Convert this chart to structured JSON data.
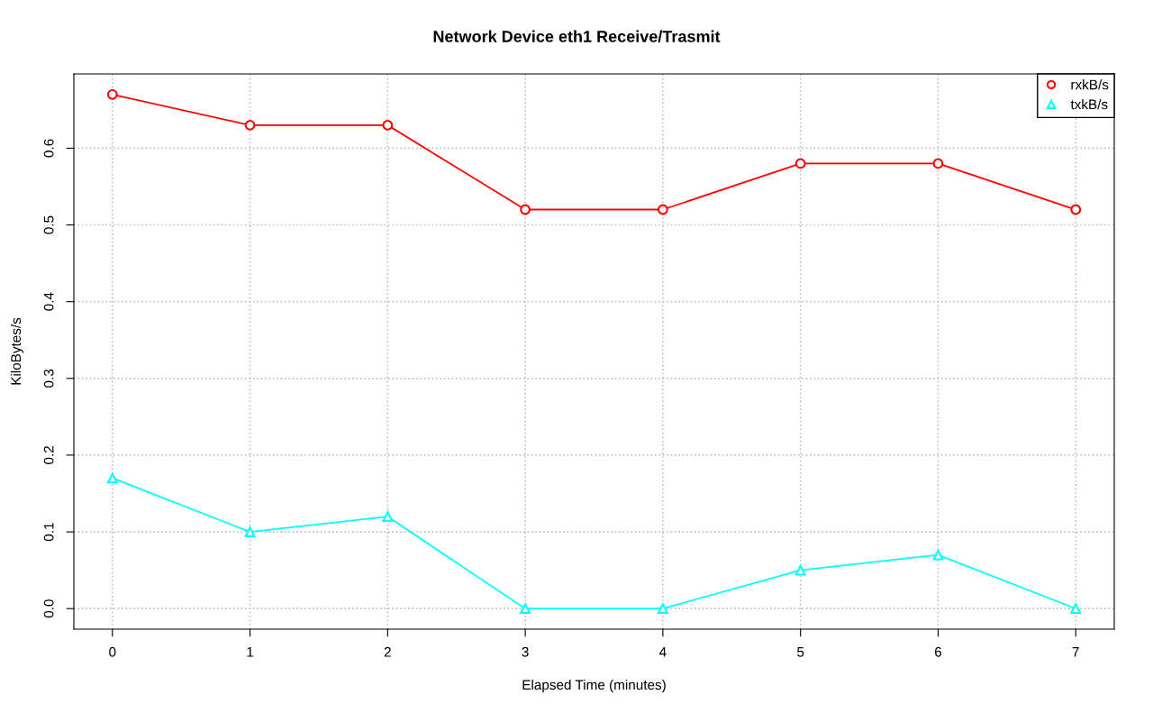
{
  "chart_data": {
    "type": "line",
    "title": "Network Device eth1 Receive/Trasmit",
    "xlabel": "Elapsed Time (minutes)",
    "ylabel": "KiloBytes/s",
    "x": [
      0,
      1,
      2,
      3,
      4,
      5,
      6,
      7
    ],
    "series": [
      {
        "name": "rxkB/s",
        "color": "#ff0000",
        "marker": "circle",
        "values": [
          0.67,
          0.63,
          0.63,
          0.52,
          0.52,
          0.58,
          0.58,
          0.52
        ]
      },
      {
        "name": "txkB/s",
        "color": "#00ffff",
        "marker": "triangle",
        "values": [
          0.17,
          0.1,
          0.12,
          0,
          0,
          0.05,
          0.07,
          0
        ]
      }
    ],
    "xlim": [
      -0.28,
      7.28
    ],
    "xticks": [
      0,
      1,
      2,
      3,
      4,
      5,
      6,
      7
    ],
    "ylim": [
      -0.0268,
      0.6968
    ],
    "yticks": [
      {
        "value": 0,
        "label": "0.0"
      },
      0.1,
      0.2,
      0.3,
      0.4,
      0.5,
      0.6
    ],
    "grid": true,
    "legend": "top right",
    "line_style": "solid"
  }
}
